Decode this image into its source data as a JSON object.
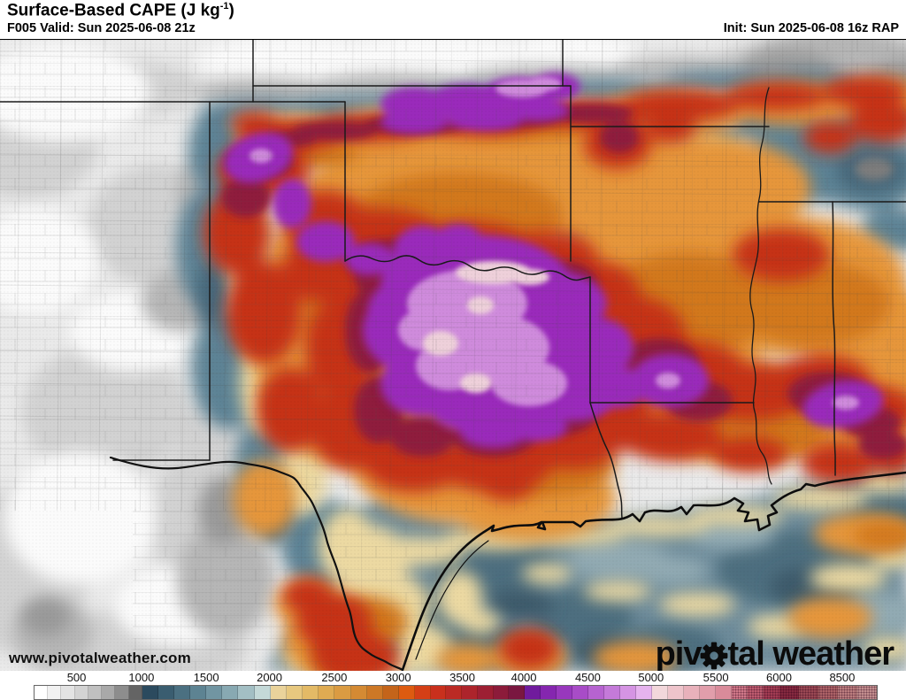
{
  "header": {
    "title_main": "Surface-Based CAPE (J kg",
    "title_superscript": "-1",
    "title_close": ")",
    "forecast_line": "F005 Valid: Sun 2025-06-08 21z",
    "init_line": "Init: Sun 2025-06-08 16z RAP"
  },
  "map": {
    "watermark": "www.pivotalweather.com",
    "logo_text_1": "piv",
    "logo_text_2": "tal weather",
    "logo_icon": "gear"
  },
  "colorbar": {
    "units": "J kg-1",
    "ticks": [
      {
        "label": "500",
        "pos": 5.1
      },
      {
        "label": "1000",
        "pos": 12.8
      },
      {
        "label": "1500",
        "pos": 20.5
      },
      {
        "label": "2000",
        "pos": 28.0
      },
      {
        "label": "2500",
        "pos": 35.7
      },
      {
        "label": "3000",
        "pos": 43.3
      },
      {
        "label": "3500",
        "pos": 50.9
      },
      {
        "label": "4000",
        "pos": 58.2
      },
      {
        "label": "4500",
        "pos": 65.8
      },
      {
        "label": "5000",
        "pos": 73.3
      },
      {
        "label": "5500",
        "pos": 81.0
      },
      {
        "label": "6000",
        "pos": 88.5
      },
      {
        "label": "8500",
        "pos": 96.0
      }
    ],
    "groups": [
      {
        "name": "gray-0-1000",
        "span": 12.8,
        "colors": [
          "#ffffff",
          "#f1f1f1",
          "#e3e3e3",
          "#d3d3d3",
          "#c0c0c0",
          "#a9a9a9",
          "#8d8d8d",
          "#646464"
        ]
      },
      {
        "name": "teal-1000-2000",
        "span": 15.2,
        "colors": [
          "#2b4a5e",
          "#3a5d70",
          "#4b7081",
          "#5d8392",
          "#7195a2",
          "#88a9b2",
          "#a3bfc4",
          "#c4d9d8"
        ]
      },
      {
        "name": "orange-2000-3000",
        "span": 15.3,
        "colors": [
          "#ead39b",
          "#e7c87f",
          "#e3ba66",
          "#dfab52",
          "#da9b42",
          "#d48a33",
          "#cd7826",
          "#c4641a"
        ]
      },
      {
        "name": "red-3000-4000",
        "span": 14.9,
        "colors": [
          "#dd5b10",
          "#d43f16",
          "#c9301d",
          "#bb2a24",
          "#ad242b",
          "#9d1f33",
          "#8c1b3a",
          "#7a1740"
        ]
      },
      {
        "name": "purple-4000-5000",
        "span": 15.1,
        "colors": [
          "#701b9d",
          "#8526af",
          "#9838bd",
          "#a84cc7",
          "#b663d0",
          "#c47ad9",
          "#d594e3",
          "#e6b3ee"
        ]
      },
      {
        "name": "pink-5000-6000",
        "span": 15.2,
        "colors": [
          "#f2d7db",
          "#eec4cb",
          "#e8b1bb",
          "#e19eab",
          "#d98b9a",
          "#d07888",
          "#bd5b6e",
          "#a23c52"
        ],
        "textured_from": 5
      },
      {
        "name": "rose-6000-9000",
        "span": 11.5,
        "colors": [
          "#85293f",
          "#9a4853",
          "#ac6266",
          "#bb7d7e",
          "#c28e8e"
        ],
        "textured_from": 0
      }
    ]
  }
}
